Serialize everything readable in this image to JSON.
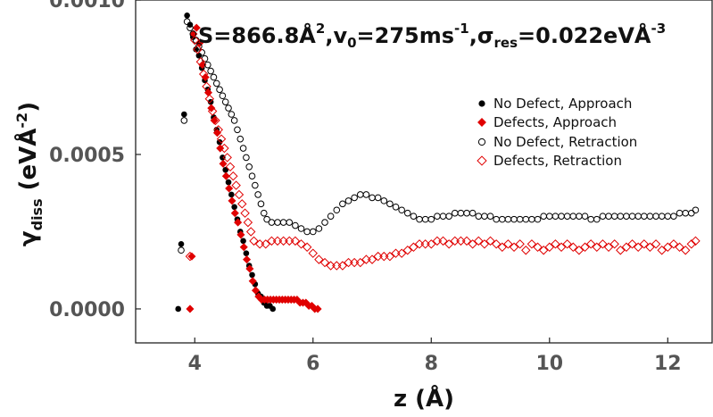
{
  "chart_data": {
    "type": "scatter",
    "xlabel": "z (Å)",
    "ylabel": {
      "main": "γ",
      "sub": "diss",
      "rest": " (eVÅ",
      "sup": "-2",
      "close": ")"
    },
    "annotation": {
      "text": "S=866.8Å",
      "s_sup": "2",
      "v": ",v",
      "v_sub": "0",
      "v_rest": "=275ms",
      "v_sup": "-1",
      "sigma": ",σ",
      "sigma_sub": "res",
      "sigma_rest": "=0.022eVÅ",
      "sigma_sup": "-3"
    },
    "xlim": [
      3.0,
      12.75
    ],
    "ylim": [
      -0.00011,
      0.001
    ],
    "xticks": [
      4,
      6,
      8,
      10,
      12
    ],
    "xtick_labels": [
      "4",
      "6",
      "8",
      "10",
      "12"
    ],
    "yticks": [
      0.0,
      0.0005,
      0.001
    ],
    "ytick_labels": [
      "0.0000",
      "0.0005",
      "0.0010"
    ],
    "grid": false,
    "legend_position": "right",
    "series": [
      {
        "name": "No Defect, Approach",
        "color": "#000000",
        "marker": "circle-filled",
        "points": [
          [
            3.72,
            0.0
          ],
          [
            3.77,
            0.00021
          ],
          [
            3.82,
            0.00063
          ],
          [
            3.87,
            0.00095
          ],
          [
            3.92,
            0.00092
          ],
          [
            3.97,
            0.00088
          ],
          [
            4.02,
            0.00084
          ],
          [
            4.07,
            0.00082
          ],
          [
            4.12,
            0.00078
          ],
          [
            4.17,
            0.00074
          ],
          [
            4.22,
            0.00071
          ],
          [
            4.27,
            0.00067
          ],
          [
            4.32,
            0.00062
          ],
          [
            4.37,
            0.00058
          ],
          [
            4.42,
            0.00054
          ],
          [
            4.47,
            0.00049
          ],
          [
            4.52,
            0.00045
          ],
          [
            4.57,
            0.00041
          ],
          [
            4.62,
            0.00037
          ],
          [
            4.67,
            0.00033
          ],
          [
            4.72,
            0.00029
          ],
          [
            4.77,
            0.00025
          ],
          [
            4.82,
            0.00022
          ],
          [
            4.87,
            0.00018
          ],
          [
            4.92,
            0.00014
          ],
          [
            4.97,
            0.00011
          ],
          [
            5.02,
            8e-05
          ],
          [
            5.07,
            5e-05
          ],
          [
            5.12,
            4e-05
          ],
          [
            5.17,
            2e-05
          ],
          [
            5.22,
            1e-05
          ],
          [
            5.27,
            1e-05
          ],
          [
            5.32,
            0.0
          ]
        ]
      },
      {
        "name": "Defects, Approach",
        "color": "#e00000",
        "marker": "diamond-filled",
        "points": [
          [
            3.92,
            0.0
          ],
          [
            3.95,
            0.00017
          ],
          [
            3.98,
            0.00089
          ],
          [
            4.03,
            0.00091
          ],
          [
            4.08,
            0.00086
          ],
          [
            4.13,
            0.00079
          ],
          [
            4.18,
            0.00075
          ],
          [
            4.23,
            0.0007
          ],
          [
            4.28,
            0.00065
          ],
          [
            4.33,
            0.00061
          ],
          [
            4.38,
            0.00057
          ],
          [
            4.43,
            0.00052
          ],
          [
            4.48,
            0.00047
          ],
          [
            4.53,
            0.00043
          ],
          [
            4.58,
            0.00039
          ],
          [
            4.63,
            0.00035
          ],
          [
            4.68,
            0.00031
          ],
          [
            4.73,
            0.00028
          ],
          [
            4.78,
            0.00024
          ],
          [
            4.83,
            0.0002
          ],
          [
            4.88,
            0.00016
          ],
          [
            4.93,
            0.00013
          ],
          [
            4.98,
            9e-05
          ],
          [
            5.03,
            6e-05
          ],
          [
            5.08,
            4e-05
          ],
          [
            5.13,
            3e-05
          ],
          [
            5.18,
            3e-05
          ],
          [
            5.23,
            3e-05
          ],
          [
            5.28,
            3e-05
          ],
          [
            5.33,
            3e-05
          ],
          [
            5.38,
            3e-05
          ],
          [
            5.43,
            3e-05
          ],
          [
            5.48,
            3e-05
          ],
          [
            5.53,
            3e-05
          ],
          [
            5.58,
            3e-05
          ],
          [
            5.63,
            3e-05
          ],
          [
            5.68,
            3e-05
          ],
          [
            5.73,
            3e-05
          ],
          [
            5.78,
            2e-05
          ],
          [
            5.83,
            2e-05
          ],
          [
            5.88,
            2e-05
          ],
          [
            5.93,
            1e-05
          ],
          [
            5.98,
            1e-05
          ],
          [
            6.03,
            0.0
          ],
          [
            6.08,
            0.0
          ]
        ]
      },
      {
        "name": "No Defect, Retraction",
        "color": "#000000",
        "marker": "circle-open",
        "points": [
          [
            3.77,
            0.00019
          ],
          [
            3.82,
            0.00061
          ],
          [
            3.87,
            0.00093
          ],
          [
            3.92,
            0.00091
          ],
          [
            3.97,
            0.00089
          ],
          [
            4.02,
            0.00087
          ],
          [
            4.07,
            0.00085
          ],
          [
            4.12,
            0.00083
          ],
          [
            4.17,
            0.00081
          ],
          [
            4.22,
            0.00079
          ],
          [
            4.27,
            0.00077
          ],
          [
            4.32,
            0.00075
          ],
          [
            4.37,
            0.00073
          ],
          [
            4.42,
            0.00071
          ],
          [
            4.47,
            0.00069
          ],
          [
            4.52,
            0.00067
          ],
          [
            4.57,
            0.00065
          ],
          [
            4.62,
            0.00063
          ],
          [
            4.67,
            0.00061
          ],
          [
            4.72,
            0.00058
          ],
          [
            4.77,
            0.00055
          ],
          [
            4.82,
            0.00052
          ],
          [
            4.87,
            0.00049
          ],
          [
            4.92,
            0.00046
          ],
          [
            4.97,
            0.00043
          ],
          [
            5.02,
            0.0004
          ],
          [
            5.07,
            0.00037
          ],
          [
            5.12,
            0.00034
          ],
          [
            5.17,
            0.00031
          ],
          [
            5.22,
            0.00029
          ],
          [
            5.3,
            0.00028
          ],
          [
            5.4,
            0.00028
          ],
          [
            5.5,
            0.00028
          ],
          [
            5.6,
            0.00028
          ],
          [
            5.7,
            0.00027
          ],
          [
            5.8,
            0.00026
          ],
          [
            5.9,
            0.00025
          ],
          [
            6.0,
            0.00025
          ],
          [
            6.1,
            0.00026
          ],
          [
            6.2,
            0.00028
          ],
          [
            6.3,
            0.0003
          ],
          [
            6.4,
            0.00032
          ],
          [
            6.5,
            0.00034
          ],
          [
            6.6,
            0.00035
          ],
          [
            6.7,
            0.00036
          ],
          [
            6.8,
            0.00037
          ],
          [
            6.9,
            0.00037
          ],
          [
            7.0,
            0.00036
          ],
          [
            7.1,
            0.00036
          ],
          [
            7.2,
            0.00035
          ],
          [
            7.3,
            0.00034
          ],
          [
            7.4,
            0.00033
          ],
          [
            7.5,
            0.00032
          ],
          [
            7.6,
            0.00031
          ],
          [
            7.7,
            0.0003
          ],
          [
            7.8,
            0.00029
          ],
          [
            7.9,
            0.00029
          ],
          [
            8.0,
            0.00029
          ],
          [
            8.1,
            0.0003
          ],
          [
            8.2,
            0.0003
          ],
          [
            8.3,
            0.0003
          ],
          [
            8.4,
            0.00031
          ],
          [
            8.5,
            0.00031
          ],
          [
            8.6,
            0.00031
          ],
          [
            8.7,
            0.00031
          ],
          [
            8.8,
            0.0003
          ],
          [
            8.9,
            0.0003
          ],
          [
            9.0,
            0.0003
          ],
          [
            9.1,
            0.00029
          ],
          [
            9.2,
            0.00029
          ],
          [
            9.3,
            0.00029
          ],
          [
            9.4,
            0.00029
          ],
          [
            9.5,
            0.00029
          ],
          [
            9.6,
            0.00029
          ],
          [
            9.7,
            0.00029
          ],
          [
            9.8,
            0.00029
          ],
          [
            9.9,
            0.0003
          ],
          [
            10.0,
            0.0003
          ],
          [
            10.1,
            0.0003
          ],
          [
            10.2,
            0.0003
          ],
          [
            10.3,
            0.0003
          ],
          [
            10.4,
            0.0003
          ],
          [
            10.5,
            0.0003
          ],
          [
            10.6,
            0.0003
          ],
          [
            10.7,
            0.00029
          ],
          [
            10.8,
            0.00029
          ],
          [
            10.9,
            0.0003
          ],
          [
            11.0,
            0.0003
          ],
          [
            11.1,
            0.0003
          ],
          [
            11.2,
            0.0003
          ],
          [
            11.3,
            0.0003
          ],
          [
            11.4,
            0.0003
          ],
          [
            11.5,
            0.0003
          ],
          [
            11.6,
            0.0003
          ],
          [
            11.7,
            0.0003
          ],
          [
            11.8,
            0.0003
          ],
          [
            11.9,
            0.0003
          ],
          [
            12.0,
            0.0003
          ],
          [
            12.1,
            0.0003
          ],
          [
            12.2,
            0.00031
          ],
          [
            12.3,
            0.00031
          ],
          [
            12.4,
            0.00031
          ],
          [
            12.47,
            0.00032
          ]
        ]
      },
      {
        "name": "Defects, Retraction",
        "color": "#e00000",
        "marker": "diamond-open",
        "points": [
          [
            3.92,
            0.00017
          ],
          [
            4.0,
            0.00087
          ],
          [
            4.05,
            0.00084
          ],
          [
            4.1,
            0.0008
          ],
          [
            4.15,
            0.00076
          ],
          [
            4.2,
            0.00072
          ],
          [
            4.25,
            0.00068
          ],
          [
            4.3,
            0.00064
          ],
          [
            4.35,
            0.00061
          ],
          [
            4.4,
            0.00058
          ],
          [
            4.45,
            0.00055
          ],
          [
            4.5,
            0.00052
          ],
          [
            4.55,
            0.00049
          ],
          [
            4.6,
            0.00046
          ],
          [
            4.65,
            0.00043
          ],
          [
            4.7,
            0.0004
          ],
          [
            4.75,
            0.00037
          ],
          [
            4.8,
            0.00034
          ],
          [
            4.85,
            0.00031
          ],
          [
            4.9,
            0.00028
          ],
          [
            4.95,
            0.00025
          ],
          [
            5.0,
            0.00022
          ],
          [
            5.1,
            0.00021
          ],
          [
            5.2,
            0.00021
          ],
          [
            5.3,
            0.00022
          ],
          [
            5.4,
            0.00022
          ],
          [
            5.5,
            0.00022
          ],
          [
            5.6,
            0.00022
          ],
          [
            5.7,
            0.00022
          ],
          [
            5.8,
            0.00021
          ],
          [
            5.9,
            0.0002
          ],
          [
            6.0,
            0.00018
          ],
          [
            6.1,
            0.00016
          ],
          [
            6.2,
            0.00015
          ],
          [
            6.3,
            0.00014
          ],
          [
            6.4,
            0.00014
          ],
          [
            6.5,
            0.00014
          ],
          [
            6.6,
            0.00015
          ],
          [
            6.7,
            0.00015
          ],
          [
            6.8,
            0.00015
          ],
          [
            6.9,
            0.00016
          ],
          [
            7.0,
            0.00016
          ],
          [
            7.1,
            0.00017
          ],
          [
            7.2,
            0.00017
          ],
          [
            7.3,
            0.00017
          ],
          [
            7.4,
            0.00018
          ],
          [
            7.5,
            0.00018
          ],
          [
            7.6,
            0.00019
          ],
          [
            7.7,
            0.0002
          ],
          [
            7.8,
            0.00021
          ],
          [
            7.9,
            0.00021
          ],
          [
            8.0,
            0.00021
          ],
          [
            8.1,
            0.00022
          ],
          [
            8.2,
            0.00022
          ],
          [
            8.3,
            0.00021
          ],
          [
            8.4,
            0.00022
          ],
          [
            8.5,
            0.00022
          ],
          [
            8.6,
            0.00022
          ],
          [
            8.7,
            0.00021
          ],
          [
            8.8,
            0.00022
          ],
          [
            8.9,
            0.00021
          ],
          [
            9.0,
            0.00022
          ],
          [
            9.1,
            0.00021
          ],
          [
            9.2,
            0.0002
          ],
          [
            9.3,
            0.00021
          ],
          [
            9.4,
            0.0002
          ],
          [
            9.5,
            0.00021
          ],
          [
            9.6,
            0.00019
          ],
          [
            9.7,
            0.00021
          ],
          [
            9.8,
            0.0002
          ],
          [
            9.9,
            0.00019
          ],
          [
            10.0,
            0.0002
          ],
          [
            10.1,
            0.00021
          ],
          [
            10.2,
            0.0002
          ],
          [
            10.3,
            0.00021
          ],
          [
            10.4,
            0.0002
          ],
          [
            10.5,
            0.00019
          ],
          [
            10.6,
            0.0002
          ],
          [
            10.7,
            0.00021
          ],
          [
            10.8,
            0.0002
          ],
          [
            10.9,
            0.00021
          ],
          [
            11.0,
            0.0002
          ],
          [
            11.1,
            0.00021
          ],
          [
            11.2,
            0.00019
          ],
          [
            11.3,
            0.0002
          ],
          [
            11.4,
            0.00021
          ],
          [
            11.5,
            0.0002
          ],
          [
            11.6,
            0.00021
          ],
          [
            11.7,
            0.0002
          ],
          [
            11.8,
            0.00021
          ],
          [
            11.9,
            0.00019
          ],
          [
            12.0,
            0.0002
          ],
          [
            12.1,
            0.00021
          ],
          [
            12.2,
            0.0002
          ],
          [
            12.3,
            0.00019
          ],
          [
            12.4,
            0.00021
          ],
          [
            12.47,
            0.00022
          ]
        ]
      }
    ]
  }
}
